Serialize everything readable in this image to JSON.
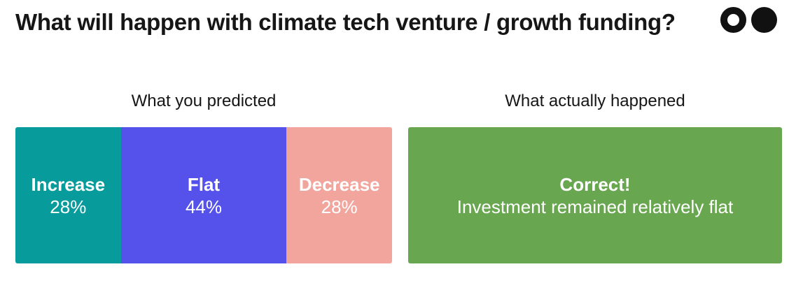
{
  "title": "What will happen with climate tech venture / growth funding?",
  "logo": {
    "left_icon": "ring-circle-icon",
    "right_icon": "filled-circle-icon",
    "color": "#111111"
  },
  "predicted": {
    "label": "What you predicted",
    "segments": [
      {
        "name": "Increase",
        "value": "28%",
        "pct": 28,
        "color": "#089B9B"
      },
      {
        "name": "Flat",
        "value": "44%",
        "pct": 44,
        "color": "#5551EB"
      },
      {
        "name": "Decrease",
        "value": "28%",
        "pct": 28,
        "color": "#F2A59D"
      }
    ]
  },
  "actual": {
    "label": "What actually happened",
    "result_title": "Correct!",
    "result_text": "Investment remained relatively flat",
    "color": "#68A74F"
  },
  "colors": {
    "title_text": "#161616",
    "bar_text": "#ffffff",
    "background": "#ffffff"
  },
  "chart_data": {
    "type": "bar",
    "subtype": "horizontal-stacked-percentage",
    "title": "What will happen with climate tech venture / growth funding?",
    "group_labels": [
      "What you predicted",
      "What actually happened"
    ],
    "categories": [
      "Increase",
      "Flat",
      "Decrease"
    ],
    "values": [
      28,
      44,
      28
    ],
    "unit": "%",
    "segment_colors": [
      "#089B9B",
      "#5551EB",
      "#F2A59D"
    ],
    "actual_outcome": "Flat",
    "actual_result_label": "Correct!",
    "actual_note": "Investment remained relatively flat",
    "actual_color": "#68A74F",
    "legend_position": "in-bar",
    "axes": "none",
    "grid": false
  }
}
